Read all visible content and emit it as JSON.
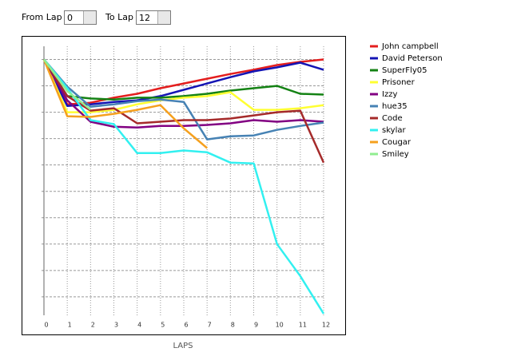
{
  "controls": {
    "from_label": "From Lap",
    "from_value": "0",
    "to_label": "To Lap",
    "to_value": "12"
  },
  "chart_data": {
    "type": "line",
    "x_label": "LAPS",
    "y_inverted": true,
    "grid": true,
    "x": [
      0,
      1,
      2,
      3,
      4,
      5,
      6,
      7,
      8,
      9,
      10,
      11,
      12
    ],
    "xlim": [
      0,
      12
    ],
    "xticks": [
      0,
      1,
      2,
      3,
      4,
      5,
      6,
      7,
      8,
      9,
      10,
      11,
      12
    ],
    "ylim": [
      -0.5,
      9.7
    ],
    "ygrid": [
      0,
      1,
      2,
      3,
      4,
      5,
      6,
      7,
      8,
      9
    ],
    "series": [
      {
        "name": "John campbell",
        "color": "#e41e1e",
        "values": [
          0,
          1.7,
          1.64,
          1.45,
          1.3,
          1.09,
          0.91,
          0.73,
          0.55,
          0.39,
          0.21,
          0.09,
          0
        ]
      },
      {
        "name": "David Peterson",
        "color": "#1414b4",
        "values": [
          0,
          1.76,
          1.7,
          1.61,
          1.55,
          1.39,
          1.15,
          0.91,
          0.67,
          0.45,
          0.3,
          0.12,
          0.39
        ]
      },
      {
        "name": "SuperFly05",
        "color": "#148214",
        "values": [
          0,
          1.39,
          1.48,
          1.52,
          1.45,
          1.45,
          1.39,
          1.3,
          1.18,
          1.09,
          1.0,
          1.3,
          1.33
        ]
      },
      {
        "name": "Prisoner",
        "color": "#ffff32",
        "values": [
          0,
          2,
          2,
          1.91,
          1.7,
          1.55,
          1.45,
          1.39,
          1.24,
          1.91,
          1.91,
          1.85,
          1.73
        ]
      },
      {
        "name": "Izzy",
        "color": "#820082",
        "values": [
          0,
          1.55,
          2.36,
          2.55,
          2.58,
          2.52,
          2.52,
          2.48,
          2.42,
          2.3,
          2.36,
          2.3,
          2.36
        ]
      },
      {
        "name": "hue35",
        "color": "#4682b4",
        "values": [
          0,
          1.03,
          1.79,
          1.7,
          1.58,
          1.52,
          1.61,
          3.03,
          2.91,
          2.88,
          2.67,
          2.52,
          2.39
        ]
      },
      {
        "name": "Code",
        "color": "#a52a2a",
        "values": [
          0,
          1.39,
          1.94,
          1.85,
          2.42,
          2.36,
          2.3,
          2.3,
          2.24,
          2.12,
          2,
          1.94,
          3.91
        ]
      },
      {
        "name": "skylar",
        "color": "#32f0f0",
        "values": [
          0,
          1.09,
          2.3,
          2.45,
          3.55,
          3.55,
          3.45,
          3.52,
          3.91,
          3.94,
          7,
          8.21,
          9.64
        ]
      },
      {
        "name": "Cougar",
        "color": "#f5a01e",
        "values": [
          0,
          2.15,
          2.18,
          2.06,
          1.91,
          1.73,
          2.61,
          3.36,
          null,
          null,
          null,
          null,
          null
        ]
      },
      {
        "name": "Smiley",
        "color": "#90ee90",
        "values": [
          0,
          1.2,
          1.9,
          null,
          null,
          null,
          null,
          null,
          null,
          null,
          null,
          null,
          null
        ]
      }
    ]
  }
}
